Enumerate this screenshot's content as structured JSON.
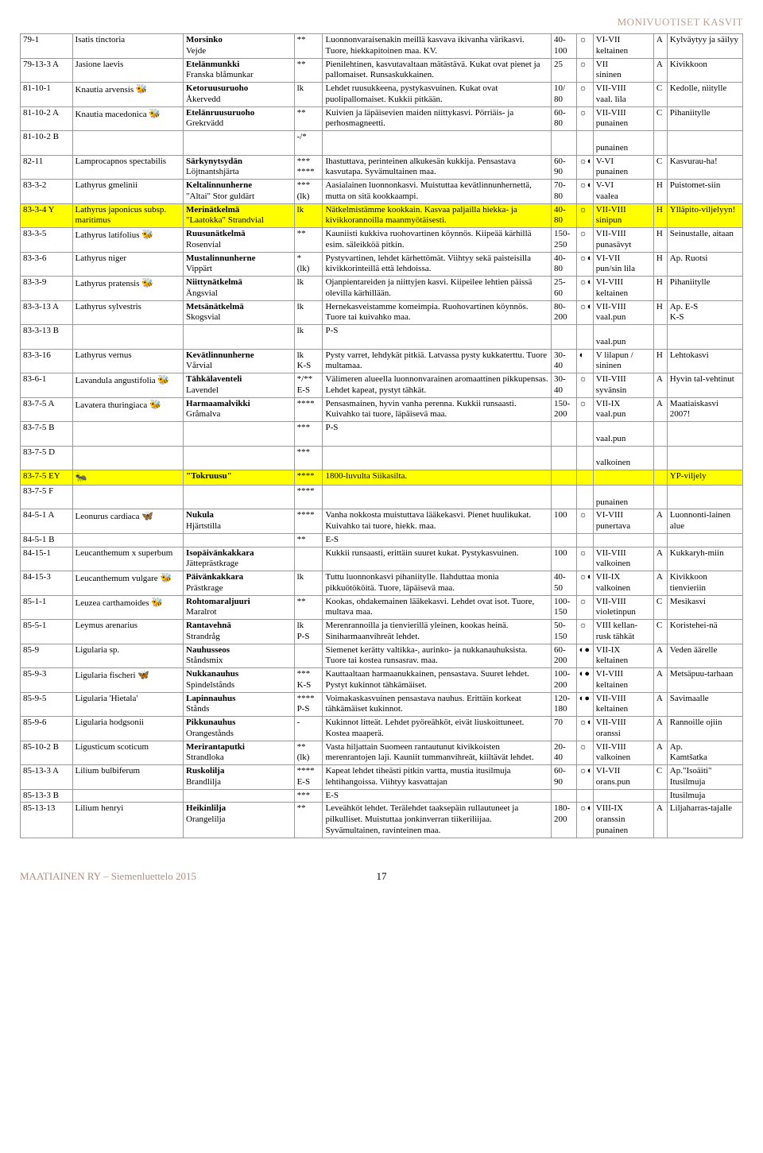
{
  "header": {
    "title": "MONIVUOTISET KASVIT"
  },
  "footer": {
    "left": "MAATIAINEN RY – Siemenluettelo 2015",
    "page": "17"
  },
  "icons": {
    "bee": "🐝",
    "butterfly": "🦋",
    "ant": "🐜",
    "sun": "☼",
    "half": "◐",
    "full": "●",
    "halfsun": "☼◐",
    "sunhalf": "☼◐",
    "sunhalffull": "◐●"
  },
  "colwidths": [
    "62px",
    "132px",
    "132px",
    "34px",
    "272px",
    "30px",
    "20px",
    "72px",
    "16px",
    "90px"
  ],
  "rows": [
    {
      "code": "79-1",
      "lat": "Isatis tinctoria",
      "lat2": "",
      "lat_i": "",
      "name": "Morsinko",
      "name2": "Vejde",
      "stars": "**",
      "desc": "Luonnonvaraisenakin meillä kasvava ikivanha värikasvi. Tuore, hiekkapitoinen maa. KV.",
      "h": "40-\n100",
      "sun": "sun",
      "time": "VI-VII",
      "time2": "keltainen",
      "z": "A",
      "note": "Kylväytyy ja säilyy"
    },
    {
      "code": "79-13-3 A",
      "lat": "Jasione laevis",
      "lat2": "",
      "lat_i": "",
      "name": "Etelänmunkki",
      "name2": "Franska blåmunkar",
      "stars": "**",
      "desc": "Pienilehtinen, kasvutavaltaan mätästävä. Kukat ovat pienet ja pallomaiset. Runsaskukkainen.",
      "h": "25",
      "sun": "sun",
      "time": "VII",
      "time2": "sininen",
      "z": "A",
      "note": "Kivikkoon"
    },
    {
      "code": "81-10-1",
      "lat": "Knautia arvensis",
      "lat2": "",
      "lat_i": "bee",
      "name": "Ketoruusuruoho",
      "name2": "Åkervedd",
      "stars": "lk",
      "desc": "Lehdet ruusukkeena, pystykasvuinen. Kukat ovat puolipallomaiset. Kukkii pitkään.",
      "h": "10/\n  80",
      "sun": "sun",
      "time": "VII-VIII",
      "time2": "vaal. lila",
      "z": "C",
      "note": "Kedolle, niitylle"
    },
    {
      "code": "81-10-2 A",
      "lat": "Knautia macedonica",
      "lat2": "",
      "lat_i": "bee",
      "name": "Etelänruusuruoho",
      "name2": "Grekrvädd",
      "stars": "**",
      "desc": "Kuivien ja läpäisevien maiden niittykasvi. Pörriäis- ja perhosmagneetti.",
      "h": "60-\n80",
      "sun": "sun",
      "time": "VII-VIII",
      "time2": "punainen",
      "z": "C",
      "note": "Pihaniitylle"
    },
    {
      "code": "81-10-2 B",
      "lat": "",
      "lat2": "",
      "lat_i": "",
      "name": "",
      "name2": "",
      "stars": "-/*",
      "desc": "",
      "h": "",
      "sun": "",
      "time": "",
      "time2": "punainen",
      "z": "",
      "note": ""
    },
    {
      "code": "82-11",
      "lat": "Lamprocapnos spectabilis",
      "lat2": "",
      "lat_i": "",
      "name": "Särkynytsydän",
      "name2": "Löjtnantshjärta",
      "stars": "***\n****",
      "desc": "Ihastuttava, perinteinen alkukesän kukkija. Pensastava kasvutapa. Syvämultainen maa.",
      "h": "60-\n90",
      "sun": "sunhalf",
      "time": "V-VI",
      "time2": "punainen",
      "z": "C",
      "note": "Kasvurau-ha!"
    },
    {
      "code": "83-3-2",
      "lat": "Lathyrus gmelinii",
      "lat2": "",
      "lat_i": "",
      "name": "Keltalinnunherne",
      "name2": "\"Altai\"  Stor guldärt",
      "stars": "***\n(lk)",
      "desc": "Aasialainen luonnonkasvi. Muistuttaa kevätlinnunhernettä, mutta on sitä kookkaampi.",
      "h": "70-\n80",
      "sun": "sunhalf",
      "time": "V-VI",
      "time2": "vaalea",
      "z": "H",
      "note": "Puistomet-siin"
    },
    {
      "hl": true,
      "code": "83-3-4 Y",
      "lat": "Lathyrus japonicus subsp. maritimus",
      "lat2": "",
      "lat_i": "",
      "name": "Merinätkelmä",
      "name2": "\"Laatokka\" Strandvial",
      "stars": "lk",
      "desc": "Nätkelmistämme kookkain. Kasvaa paljailla hiekka- ja kivikkorannoilla maanmyötäisesti.",
      "h": "40-\n80",
      "sun": "sun",
      "time": "VII-VIII",
      "time2": "sinipun",
      "z": "H",
      "note": "Ylläpito-viljelyyn!"
    },
    {
      "code": "83-3-5",
      "lat": "Lathyrus latifolius",
      "lat2": "",
      "lat_i": "bee",
      "name": "Ruusunätkelmä",
      "name2": "Rosenvial",
      "stars": "**",
      "desc": "Kauniisti kukkiva ruohovartinen köynnös. Kiipeää kärhillä esim. säleikköä pitkin.",
      "h": "150-\n250",
      "sun": "sun",
      "time": "VII-VIII",
      "time2": "punasävyt",
      "z": "H",
      "note": "Seinustalle, aitaan"
    },
    {
      "code": "83-3-6",
      "lat": "Lathyrus niger",
      "lat2": "",
      "lat_i": "",
      "name": "Mustalinnunherne",
      "name2": "Vippärt",
      "stars": "*\n(lk)",
      "desc": "Pystyvartinen, lehdet kärhettömät. Viihtyy sekä paisteisilla kivikkorinteillä että lehdoissa.",
      "h": "40-\n80",
      "sun": "sunhalf",
      "time": "VI-VII",
      "time2": "pun/sin lila",
      "z": "H",
      "note": "Ap. Ruotsi"
    },
    {
      "code": "83-3-9",
      "lat": "Lathyrus pratensis",
      "lat2": "",
      "lat_i": "bee",
      "name": "Niittynätkelmä",
      "name2": "Ängsvial",
      "stars": "lk",
      "desc": "Ojanpientareiden ja niittyjen kasvi. Kiipeilee lehtien päissä olevilla kärhillään.",
      "h": "25-\n60",
      "sun": "sunhalf",
      "time": "VI-VIII",
      "time2": "keltainen",
      "z": "H",
      "note": "Pihaniitylle"
    },
    {
      "code": "83-3-13 A",
      "lat": "Lathyrus sylvestris",
      "lat2": "",
      "lat_i": "",
      "name": "Metsänätkelmä",
      "name2": "Skogsvial",
      "stars": "lk",
      "desc": "Hernekasveistamme komeimpia. Ruohovartinen köynnös. Tuore tai kuivahko maa.",
      "h": "80-\n200",
      "sun": "sunhalf",
      "time": "VII-VIII",
      "time2": "vaal.pun",
      "z": "H",
      "note": "Ap. E-S\nK-S"
    },
    {
      "code": "83-3-13 B",
      "lat": "",
      "lat2": "",
      "lat_i": "",
      "name": "",
      "name2": "",
      "stars": "lk",
      "desc": "P-S",
      "h": "",
      "sun": "",
      "time": "",
      "time2": "vaal.pun",
      "z": "",
      "note": ""
    },
    {
      "code": "83-3-16",
      "lat": "Lathyrus vernus",
      "lat2": "",
      "lat_i": "",
      "name": "Kevätlinnunherne",
      "name2": "Vårvial",
      "stars": "lk\nK-S",
      "desc": "Pysty varret, lehdykät pitkiä. Latvassa pysty kukkaterttu. Tuore multamaa.",
      "h": "30-\n40",
      "sun": "half",
      "time": "V lilapun /",
      "time2": "sininen",
      "z": "H",
      "note": "Lehtokasvi"
    },
    {
      "code": "83-6-1",
      "lat": "Lavandula angustifolia",
      "lat2": "",
      "lat_i": "bee",
      "name": "Tähkälaventeli",
      "name2": "Lavendel",
      "stars": "*/**\nE-S",
      "desc": "Välimeren alueella luonnonvarainen aromaattinen pikkupensas. Lehdet kapeat, pystyt tähkät.",
      "h": "30-\n40",
      "sun": "sun",
      "time": "VII-VIII",
      "time2": "syvänsin",
      "z": "A",
      "note": "Hyvin tal-vehtinut"
    },
    {
      "code": "83-7-5 A",
      "lat": "Lavatera thuringiaca",
      "lat2": "",
      "lat_i": "bee",
      "name": "Harmaamalvikki",
      "name2": "Gråmalva",
      "stars": "****",
      "desc": "Pensasmainen, hyvin vanha perenna. Kukkii runsaasti. Kuivahko tai tuore, läpäisevä maa.",
      "h": "150-\n200",
      "sun": "sun",
      "time": "VII-IX",
      "time2": "vaal.pun",
      "z": "A",
      "note": "Maatiaiskasvi 2007!"
    },
    {
      "code": "83-7-5 B",
      "lat": "",
      "lat2": "",
      "lat_i": "",
      "name": "",
      "name2": "",
      "stars": "***",
      "desc": "P-S",
      "h": "",
      "sun": "",
      "time": "",
      "time2": "vaal.pun",
      "z": "",
      "note": ""
    },
    {
      "code": "83-7-5 D",
      "lat": "",
      "lat2": "",
      "lat_i": "",
      "name": "",
      "name2": "",
      "stars": "***",
      "desc": "",
      "h": "",
      "sun": "",
      "time": "",
      "time2": "valkoinen",
      "z": "",
      "note": ""
    },
    {
      "hl": true,
      "code": "83-7-5 EY",
      "lat": "",
      "lat2": "",
      "lat_i": "ant",
      "name": "\"Tokruusu\"",
      "name2": "",
      "stars": "****",
      "desc": "1800-luvulta Siikasilta.",
      "h": "",
      "sun": "",
      "time": "",
      "time2": "",
      "z": "",
      "note": "YP-viljely"
    },
    {
      "code": "83-7-5 F",
      "lat": "",
      "lat2": "",
      "lat_i": "",
      "name": "",
      "name2": "",
      "stars": "****",
      "desc": "",
      "h": "",
      "sun": "",
      "time": "",
      "time2": "punainen",
      "z": "",
      "note": ""
    },
    {
      "code": "84-5-1 A",
      "lat": "Leonurus cardiaca",
      "lat2": "",
      "lat_i": "butterfly",
      "name": "Nukula",
      "name2": "Hjärtstilla",
      "stars": "****",
      "desc": "Vanha nokkosta muistuttava lääkekasvi. Pienet huulikukat. Kuivahko tai tuore, hiekk. maa.",
      "h": "100",
      "sun": "sun",
      "time": "VI-VIII",
      "time2": "punertava",
      "z": "A",
      "note": "Luonnonti-lainen alue"
    },
    {
      "code": "84-5-1 B",
      "lat": "",
      "lat2": "",
      "lat_i": "",
      "name": "",
      "name2": "",
      "stars": "**",
      "desc": "E-S",
      "h": "",
      "sun": "",
      "time": "",
      "time2": "",
      "z": "",
      "note": ""
    },
    {
      "code": "84-15-1",
      "lat": "Leucanthemum x superbum",
      "lat2": "",
      "lat_i": "",
      "name": "Isopäivänkakkara",
      "name2": "Jätteprästkrage",
      "stars": "",
      "desc": "Kukkii runsaasti, erittäin suuret kukat. Pystykasvuinen.",
      "h": "100",
      "sun": "sun",
      "time": "VII-VIII",
      "time2": "valkoinen",
      "z": "A",
      "note": "Kukkaryh-miin"
    },
    {
      "code": "84-15-3",
      "lat": "Leucanthemum vulgare",
      "lat2": "",
      "lat_i": "bee",
      "name": "Päivänkakkara",
      "name2": "Prästkrage",
      "stars": "lk",
      "desc": "Tuttu luonnonkasvi pihaniitylle. Ilahduttaa monia pikkuötököitä. Tuore, läpäisevä maa.",
      "h": "40-\n50",
      "sun": "sunhalf",
      "time": "VII-IX",
      "time2": "valkoinen",
      "z": "A",
      "note": "Kivikkoon tienvieriin"
    },
    {
      "code": "85-1-1",
      "lat": "Leuzea carthamoides",
      "lat2": "",
      "lat_i": "bee",
      "name": "Rohtomaraljuuri",
      "name2": "Maralrot",
      "stars": "**",
      "desc": "Kookas, ohdakemainen lääkekasvi. Lehdet ovat isot. Tuore, multava maa.",
      "h": "100-\n150",
      "sun": "sun",
      "time": "VII-VIII",
      "time2": "violetinpun",
      "z": "C",
      "note": "Mesikasvi"
    },
    {
      "code": "85-5-1",
      "lat": "Leymus arenarius",
      "lat2": "",
      "lat_i": "",
      "name": "Rantavehnä",
      "name2": "Strandråg",
      "stars": "lk\nP-S",
      "desc": "Merenrannoilla ja tienvierillä yleinen, kookas heinä. Siniharmaanvihreät lehdet.",
      "h": "50-\n150",
      "sun": "sun",
      "time": "VIII kellan-",
      "time2": "rusk tähkät",
      "z": "C",
      "note": "Koristehei-nä"
    },
    {
      "code": "85-9",
      "lat": "Ligularia sp.",
      "lat2": "",
      "lat_i": "",
      "name": "Nauhusseos",
      "name2": "Ståndsmix",
      "stars": "",
      "desc": "Siemenet kerätty valtikka-, aurinko- ja nukkanauhuksista. Tuore tai kostea runsasrav. maa.",
      "h": "60-\n200",
      "sun": "sunhalffull",
      "time": "VII-IX",
      "time2": "keltainen",
      "z": "A",
      "note": "Veden äärelle"
    },
    {
      "code": "85-9-3",
      "lat": "Ligularia fischeri",
      "lat2": "",
      "lat_i": "butterfly",
      "name": "Nukkanauhus",
      "name2": "Spindelstånds",
      "stars": "***\nK-S",
      "desc": "Kauttaaltaan harmaanukkainen, pensastava. Suuret lehdet. Pystyt kukinnot tähkämäiset.",
      "h": "100-\n200",
      "sun": "sunhalffull",
      "time": "VI-VIII",
      "time2": "keltainen",
      "z": "A",
      "note": "Metsäpuu-tarhaan"
    },
    {
      "code": "85-9-5",
      "lat": "Ligularia 'Hietala'",
      "lat2": "",
      "lat_i": "",
      "name": "Lapinnauhus",
      "name2": "Stånds",
      "stars": "****\nP-S",
      "desc": "Voimakaskasvuinen pensastava nauhus. Erittäin korkeat tähkämäiset kukinnot.",
      "h": "120-\n180",
      "sun": "sunhalffull",
      "time": "VII-VIII",
      "time2": "keltainen",
      "z": "A",
      "note": "Savimaalle"
    },
    {
      "code": "85-9-6",
      "lat": "Ligularia hodgsonii",
      "lat2": "",
      "lat_i": "",
      "name": "Pikkunauhus",
      "name2": "Orangestånds",
      "stars": "-",
      "desc": "Kukinnot litteät. Lehdet pyöreähköt, eivät liuskoittuneet. Kostea maaperä.",
      "h": "   70",
      "sun": "sunhalf",
      "time": "VII-VIII",
      "time2": "oranssi",
      "z": "A",
      "note": "Rannoille ojiin"
    },
    {
      "code": "85-10-2 B",
      "lat": "Ligusticum scoticum",
      "lat2": "",
      "lat_i": "",
      "name": "Merirantaputki",
      "name2": "Strandloka",
      "stars": "**\n(lk)",
      "desc": "Vasta hiljattain Suomeen rantautunut kivikkoisten merenrantojen laji. Kauniit tummanvihreät, kiiltävät lehdet.",
      "h": "20-\n40",
      "sun": "sun",
      "time": "VII-VIII",
      "time2": "valkoinen",
      "z": "A",
      "note": "Ap.\nKamtšatka"
    },
    {
      "code": "85-13-3 A",
      "lat": "Lilium bulbiferum",
      "lat2": "",
      "lat_i": "",
      "name": "Ruskolilja",
      "name2": "Brandlilja",
      "stars": "****\nE-S",
      "desc": "Kapeat lehdet tiheästi pitkin vartta, mustia itusilmuja lehtihangoissa. Viihtyy kasvattajan",
      "h": "60-\n90",
      "sun": "sunhalf",
      "time": "VI-VII",
      "time2": "orans.pun",
      "z": "C",
      "note": "Ap.\"Isoäiti\"\nItusilmuja"
    },
    {
      "code": "85-13-3 B",
      "lat": "",
      "lat2": "",
      "lat_i": "",
      "name": "",
      "name2": "",
      "stars": "***",
      "desc": "E-S",
      "h": "",
      "sun": "",
      "time": "",
      "time2": "",
      "z": "",
      "note": "Itusilmuja"
    },
    {
      "code": "85-13-13",
      "lat": "Lilium henryi",
      "lat2": "",
      "lat_i": "",
      "name": "Heikinlilja",
      "name2": "Orangelilja",
      "stars": "**",
      "desc": "Leveähköt lehdet. Terälehdet taaksepäin rullautuneet ja pilkulliset. Muistuttaa jonkinverran tiikeriliijaa. Syvämultainen, ravinteinen maa.",
      "h": "180-\n200",
      "sun": "sunhalf",
      "time": "VIII-IX",
      "time2": "oranssin\npunainen",
      "z": "A",
      "note": "Liljaharras-tajalle"
    }
  ]
}
